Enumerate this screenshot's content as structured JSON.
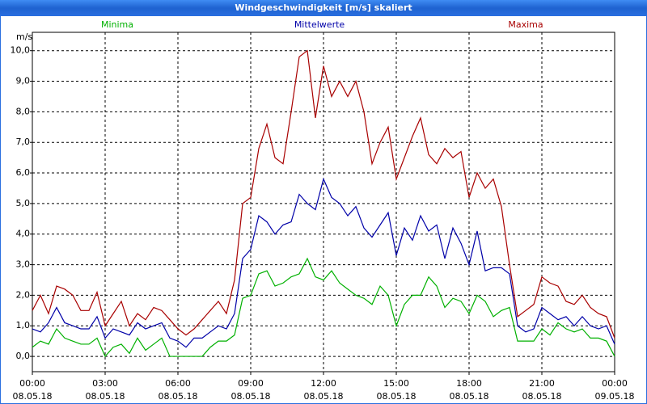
{
  "chart_data": {
    "type": "line",
    "title": "Windgeschwindigkeit [m/s] skaliert",
    "y_label": "m/s",
    "x": [
      0,
      20,
      40,
      60,
      80,
      100,
      120,
      140,
      160,
      180,
      200,
      220,
      240,
      260,
      280,
      300,
      320,
      340,
      360,
      380,
      400,
      420,
      440,
      460,
      480,
      500,
      520,
      540,
      560,
      580,
      600,
      620,
      640,
      660,
      680,
      700,
      720,
      740,
      760,
      780,
      800,
      820,
      840,
      860,
      880,
      900,
      920,
      940,
      960,
      980,
      1000,
      1020,
      1040,
      1060,
      1080,
      1100,
      1120,
      1140,
      1160,
      1180,
      1200,
      1220,
      1240,
      1260,
      1280,
      1300,
      1320,
      1340,
      1360,
      1380,
      1400,
      1420,
      1440
    ],
    "series": [
      {
        "name": "Minima",
        "color": "#00b000",
        "values": [
          0.3,
          0.5,
          0.4,
          0.9,
          0.6,
          0.5,
          0.4,
          0.4,
          0.6,
          0.0,
          0.3,
          0.4,
          0.1,
          0.6,
          0.2,
          0.4,
          0.6,
          0.0,
          0.0,
          0.0,
          0.0,
          0.0,
          0.3,
          0.5,
          0.5,
          0.7,
          1.9,
          2.0,
          2.7,
          2.8,
          2.3,
          2.4,
          2.6,
          2.7,
          3.2,
          2.6,
          2.5,
          2.8,
          2.4,
          2.2,
          2.0,
          1.9,
          1.7,
          2.3,
          2.0,
          1.0,
          1.7,
          2.0,
          2.0,
          2.6,
          2.3,
          1.6,
          1.9,
          1.8,
          1.4,
          2.0,
          1.8,
          1.3,
          1.5,
          1.6,
          0.5,
          0.5,
          0.5,
          0.9,
          0.7,
          1.1,
          0.9,
          0.8,
          0.9,
          0.6,
          0.6,
          0.5,
          0.0
        ]
      },
      {
        "name": "Mittelwerte",
        "color": "#0000a8",
        "values": [
          0.9,
          0.8,
          1.1,
          1.6,
          1.1,
          1.0,
          0.9,
          0.9,
          1.3,
          0.6,
          0.9,
          0.8,
          0.7,
          1.1,
          0.9,
          1.0,
          1.1,
          0.6,
          0.5,
          0.3,
          0.6,
          0.6,
          0.8,
          1.0,
          0.9,
          1.4,
          3.2,
          3.5,
          4.6,
          4.4,
          4.0,
          4.3,
          4.4,
          5.3,
          5.0,
          4.8,
          5.8,
          5.2,
          5.0,
          4.6,
          4.9,
          4.2,
          3.9,
          4.3,
          4.7,
          3.3,
          4.2,
          3.8,
          4.6,
          4.1,
          4.3,
          3.2,
          4.2,
          3.7,
          3.0,
          4.1,
          2.8,
          2.9,
          2.9,
          2.7,
          1.0,
          0.8,
          0.9,
          1.6,
          1.4,
          1.2,
          1.3,
          1.0,
          1.3,
          1.0,
          0.9,
          1.0,
          0.4
        ]
      },
      {
        "name": "Maxima",
        "color": "#a80000",
        "values": [
          1.5,
          2.0,
          1.4,
          2.3,
          2.2,
          2.0,
          1.5,
          1.5,
          2.1,
          1.0,
          1.4,
          1.8,
          1.0,
          1.4,
          1.2,
          1.6,
          1.5,
          1.2,
          0.9,
          0.7,
          0.9,
          1.2,
          1.5,
          1.8,
          1.4,
          2.5,
          5.0,
          5.2,
          6.8,
          7.6,
          6.5,
          6.3,
          8.0,
          9.8,
          10.0,
          7.8,
          9.5,
          8.5,
          9.0,
          8.5,
          9.0,
          8.0,
          6.3,
          7.0,
          7.5,
          5.8,
          6.5,
          7.2,
          7.8,
          6.6,
          6.3,
          6.8,
          6.5,
          6.7,
          5.2,
          6.0,
          5.5,
          5.8,
          4.9,
          3.0,
          1.3,
          1.5,
          1.7,
          2.6,
          2.4,
          2.3,
          1.8,
          1.7,
          2.0,
          1.6,
          1.4,
          1.3,
          0.6
        ]
      }
    ],
    "xlim": [
      0,
      1440
    ],
    "xticks": [
      {
        "value": 0,
        "label": "00:00 08.05.18"
      },
      {
        "value": 180,
        "label": "03:00 08.05.18"
      },
      {
        "value": 360,
        "label": "06:00 08.05.18"
      },
      {
        "value": 540,
        "label": "09:00 08.05.18"
      },
      {
        "value": 720,
        "label": "12:00 08.05.18"
      },
      {
        "value": 900,
        "label": "15:00 08.05.18"
      },
      {
        "value": 1080,
        "label": "18:00 08.05.18"
      },
      {
        "value": 1260,
        "label": "21:00 08.05.18"
      },
      {
        "value": 1440,
        "label": "00:00 09.05.18"
      }
    ],
    "ylim": [
      -0.5,
      10.6
    ],
    "yticks": [
      {
        "value": 0,
        "label": "0,0"
      },
      {
        "value": 1,
        "label": "1,0"
      },
      {
        "value": 2,
        "label": "2,0"
      },
      {
        "value": 3,
        "label": "3,0"
      },
      {
        "value": 4,
        "label": "4,0"
      },
      {
        "value": 5,
        "label": "5,0"
      },
      {
        "value": 6,
        "label": "6,0"
      },
      {
        "value": 7,
        "label": "7,0"
      },
      {
        "value": 8,
        "label": "8,0"
      },
      {
        "value": 9,
        "label": "9,0"
      },
      {
        "value": 10,
        "label": "10,0"
      }
    ],
    "grid": true
  }
}
